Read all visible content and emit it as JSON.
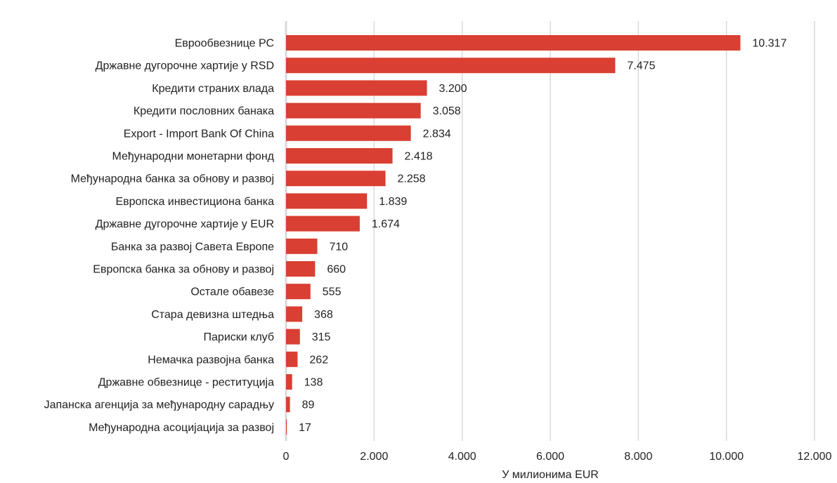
{
  "chart_data": {
    "type": "bar",
    "orientation": "horizontal",
    "categories": [
      "Еврообвезнице РС",
      "Државне дугорочне хартије у RSD",
      "Кредити страних влада",
      "Кредити пословних банака",
      "Export - Import Bank Of China",
      "Међународни монетарни фонд",
      "Међународна банка за обнову и развој",
      "Европска инвестициона банка",
      "Државне дугорочне хартије  у EUR",
      "Банка за развој Савета Европе",
      "Европска банка за обнову и развој",
      "Остале обавезе",
      "Стара девизна штедња",
      "Париски клуб",
      "Немачка развојна банка",
      "Државне обвезнице - реституција",
      "Јапанска агенција за међународну сарадњу",
      "Међународна асоцијација за развој"
    ],
    "values": [
      10317,
      7475,
      3200,
      3058,
      2834,
      2418,
      2258,
      1839,
      1674,
      710,
      660,
      555,
      368,
      315,
      262,
      138,
      89,
      17
    ],
    "value_labels": [
      "10.317",
      "7.475",
      "3.200",
      "3.058",
      "2.834",
      "2.418",
      "2.258",
      "1.839",
      "1.674",
      "710",
      "660",
      "555",
      "368",
      "315",
      "262",
      "138",
      "89",
      "17"
    ],
    "xticks": [
      0,
      2000,
      4000,
      6000,
      8000,
      10000,
      12000
    ],
    "xtick_labels": [
      "0",
      "2.000",
      "4.000",
      "6.000",
      "8.000",
      "10.000",
      "12.000"
    ],
    "xlim": [
      0,
      12000
    ],
    "xlabel": "У милионима EUR",
    "ylabel": "",
    "title": "",
    "grid": "vertical",
    "bar_color": "#d93f32",
    "grid_color": "#d9d9d9"
  }
}
